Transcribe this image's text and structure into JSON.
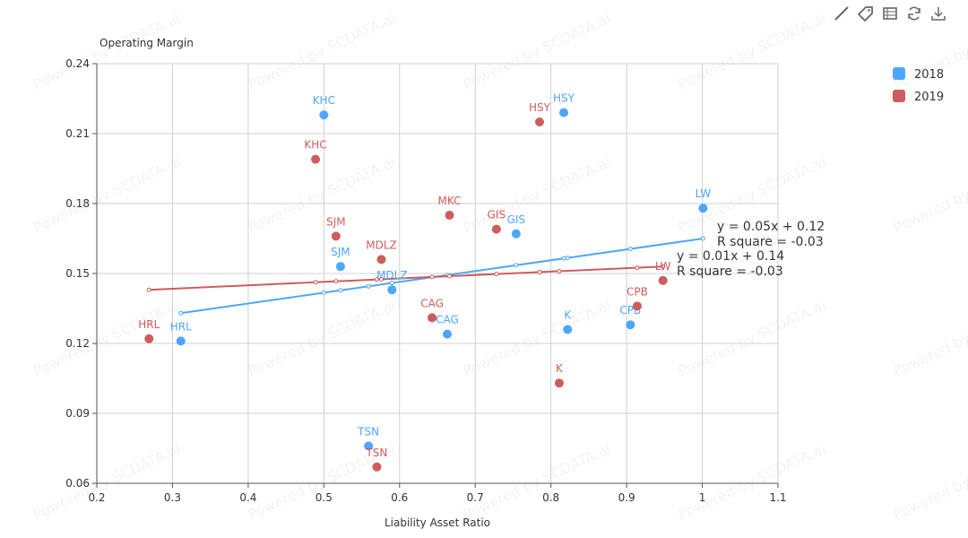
{
  "toolbar": {
    "icons": [
      "line-tool-icon",
      "tag-icon",
      "data-table-icon",
      "refresh-icon",
      "download-icon"
    ]
  },
  "watermark": "Powered by SCDATA.ai",
  "chart_data": {
    "type": "scatter",
    "title": "",
    "xlabel": "Liability Asset Ratio",
    "ylabel": "Operating Margin",
    "xlim": [
      0.2,
      1.1
    ],
    "ylim": [
      0.06,
      0.24
    ],
    "xticks": [
      "0.2",
      "0.3",
      "0.4",
      "0.5",
      "0.6",
      "0.7",
      "0.8",
      "0.9",
      "1",
      "1.1"
    ],
    "yticks": [
      "0.06",
      "0.09",
      "0.12",
      "0.15",
      "0.18",
      "0.21",
      "0.24"
    ],
    "grid": true,
    "legend_position": "top-right",
    "series": [
      {
        "name": "2018",
        "color": "#4da6ff",
        "points": [
          {
            "label": "KHC",
            "x": 0.5,
            "y": 0.218
          },
          {
            "label": "HSY",
            "x": 0.817,
            "y": 0.219
          },
          {
            "label": "LW",
            "x": 1.001,
            "y": 0.178
          },
          {
            "label": "GIS",
            "x": 0.754,
            "y": 0.167
          },
          {
            "label": "SJM",
            "x": 0.522,
            "y": 0.153
          },
          {
            "label": "MDLZ",
            "x": 0.59,
            "y": 0.143
          },
          {
            "label": "CAG",
            "x": 0.663,
            "y": 0.124
          },
          {
            "label": "K",
            "x": 0.822,
            "y": 0.126
          },
          {
            "label": "CPB",
            "x": 0.905,
            "y": 0.128
          },
          {
            "label": "HRL",
            "x": 0.311,
            "y": 0.121
          },
          {
            "label": "TSN",
            "x": 0.559,
            "y": 0.076
          }
        ],
        "trend": {
          "x": [
            0.311,
            1.001
          ],
          "y": [
            0.133,
            0.165
          ],
          "equation": "y = 0.05x + 0.12",
          "r_square": "R square = -0.03"
        }
      },
      {
        "name": "2019",
        "color": "#cd5c5c",
        "points": [
          {
            "label": "HSY",
            "x": 0.785,
            "y": 0.215
          },
          {
            "label": "KHC",
            "x": 0.489,
            "y": 0.199
          },
          {
            "label": "MKC",
            "x": 0.666,
            "y": 0.175
          },
          {
            "label": "GIS",
            "x": 0.728,
            "y": 0.169
          },
          {
            "label": "SJM",
            "x": 0.516,
            "y": 0.166
          },
          {
            "label": "MDLZ",
            "x": 0.576,
            "y": 0.156
          },
          {
            "label": "LW",
            "x": 0.948,
            "y": 0.147
          },
          {
            "label": "CPB",
            "x": 0.914,
            "y": 0.136
          },
          {
            "label": "CAG",
            "x": 0.643,
            "y": 0.131
          },
          {
            "label": "HRL",
            "x": 0.269,
            "y": 0.122
          },
          {
            "label": "K",
            "x": 0.811,
            "y": 0.103
          },
          {
            "label": "TSN",
            "x": 0.57,
            "y": 0.067
          }
        ],
        "trend": {
          "x": [
            0.269,
            0.948
          ],
          "y": [
            0.143,
            0.153
          ],
          "equation": "y = 0.01x + 0.14",
          "r_square": "R square = -0.03"
        }
      }
    ]
  }
}
